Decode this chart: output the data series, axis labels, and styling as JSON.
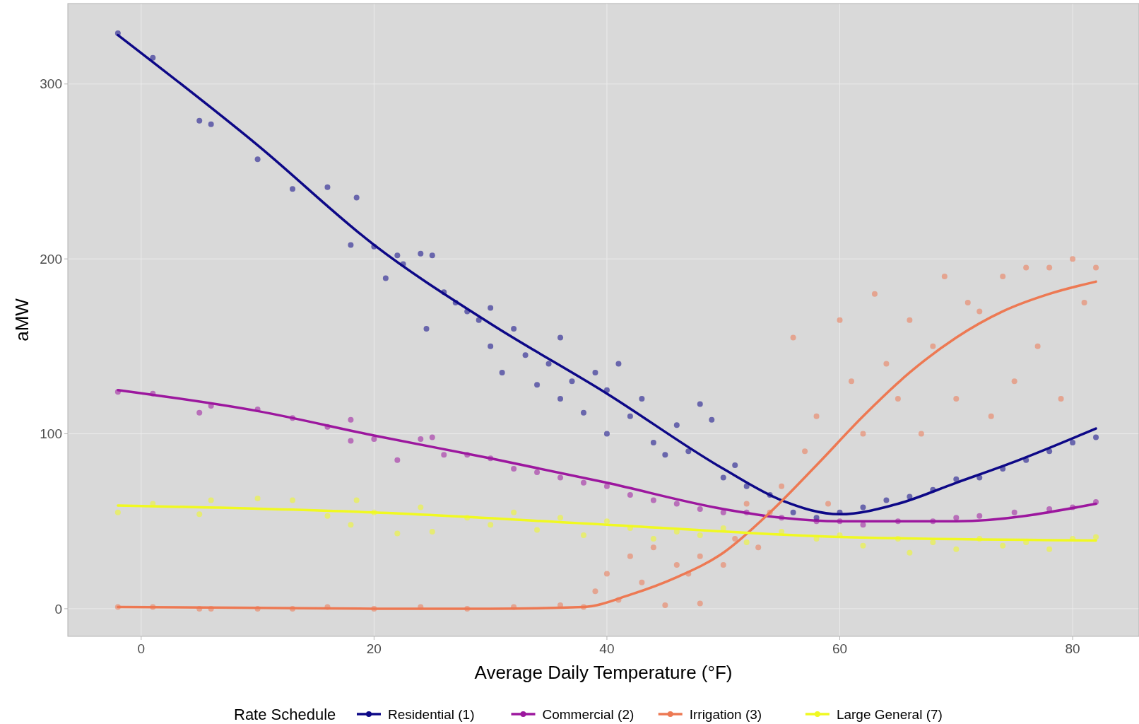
{
  "chart_data": {
    "type": "scatter",
    "xlabel": "Average Daily Temperature (°F)",
    "ylabel": "aMW",
    "legend_title": "Rate Schedule",
    "legend": "bottom",
    "grid": true,
    "marker": "circle",
    "xlim": [
      -6.3,
      85.7
    ],
    "ylim": [
      -15.8,
      346
    ],
    "xticks": [
      0,
      20,
      40,
      60,
      80
    ],
    "yticks": [
      0,
      100,
      200,
      300
    ],
    "series": [
      {
        "name": "Residential (1)",
        "color": "#0d0887",
        "x": [
          -2,
          1,
          5,
          6,
          10,
          13,
          16,
          18,
          18.5,
          20,
          21,
          22,
          22.5,
          24,
          25,
          24.5,
          26,
          27,
          28,
          29,
          30,
          30,
          31,
          32,
          33,
          34,
          35,
          36,
          36,
          37,
          38,
          39,
          40,
          40,
          41,
          42,
          43,
          44,
          45,
          46,
          47,
          48,
          49,
          50,
          51,
          52,
          54,
          56,
          58,
          60,
          62,
          64,
          66,
          68,
          70,
          72,
          74,
          76,
          78,
          80,
          82
        ],
        "values": [
          329,
          315,
          279,
          277,
          257,
          240,
          241,
          208,
          235,
          207,
          189,
          202,
          197,
          203,
          202,
          160,
          181,
          175,
          170,
          165,
          150,
          172,
          135,
          160,
          145,
          128,
          140,
          155,
          120,
          130,
          112,
          135,
          125,
          100,
          140,
          110,
          120,
          95,
          88,
          105,
          90,
          117,
          108,
          75,
          82,
          70,
          65,
          55,
          52,
          55,
          58,
          62,
          64,
          68,
          74,
          75,
          80,
          85,
          90,
          95,
          98
        ]
      },
      {
        "name": "Commercial (2)",
        "color": "#9c179e",
        "x": [
          -2,
          1,
          5,
          6,
          10,
          13,
          16,
          18,
          18,
          20,
          22,
          24,
          25,
          26,
          28,
          30,
          32,
          34,
          36,
          38,
          40,
          42,
          44,
          46,
          48,
          50,
          52,
          55,
          58,
          60,
          62,
          65,
          68,
          70,
          72,
          75,
          78,
          80,
          82
        ],
        "values": [
          124,
          123,
          112,
          116,
          114,
          109,
          104,
          108,
          96,
          97,
          85,
          97,
          98,
          88,
          88,
          86,
          80,
          78,
          75,
          72,
          70,
          65,
          62,
          60,
          57,
          55,
          55,
          52,
          50,
          50,
          48,
          50,
          50,
          52,
          53,
          55,
          57,
          58,
          61
        ]
      },
      {
        "name": "Irrigation (3)",
        "color": "#ed7953",
        "x": [
          -2,
          1,
          5,
          6,
          10,
          13,
          16,
          20,
          24,
          28,
          32,
          36,
          38,
          39,
          40,
          41,
          42,
          43,
          44,
          45,
          46,
          47,
          48,
          48,
          50,
          51,
          52,
          53,
          54,
          55,
          56,
          57,
          58,
          59,
          60,
          61,
          62,
          63,
          64,
          65,
          66,
          67,
          68,
          69,
          70,
          71,
          72,
          73,
          74,
          75,
          76,
          77,
          78,
          79,
          80,
          81,
          82
        ],
        "values": [
          1,
          1,
          0,
          0,
          0,
          0,
          1,
          0,
          1,
          0,
          1,
          2,
          1,
          10,
          20,
          5,
          30,
          15,
          35,
          2,
          25,
          20,
          30,
          3,
          25,
          40,
          60,
          35,
          55,
          70,
          155,
          90,
          110,
          60,
          165,
          130,
          100,
          180,
          140,
          120,
          165,
          100,
          150,
          190,
          120,
          175,
          170,
          110,
          190,
          130,
          195,
          150,
          195,
          120,
          200,
          175,
          195
        ]
      },
      {
        "name": "Large General (7)",
        "color": "#f0f921",
        "x": [
          -2,
          1,
          5,
          6,
          10,
          13,
          16,
          18,
          18.5,
          20,
          22,
          24,
          25,
          28,
          30,
          32,
          34,
          36,
          38,
          40,
          42,
          44,
          46,
          48,
          50,
          52,
          55,
          58,
          60,
          62,
          65,
          66,
          68,
          70,
          72,
          74,
          76,
          78,
          80,
          82
        ],
        "values": [
          55,
          60,
          54,
          62,
          63,
          62,
          53,
          48,
          62,
          55,
          43,
          58,
          44,
          52,
          48,
          55,
          45,
          52,
          42,
          50,
          46,
          40,
          44,
          42,
          46,
          38,
          44,
          40,
          42,
          36,
          40,
          32,
          38,
          34,
          40,
          36,
          38,
          34,
          40,
          41
        ]
      },
      {
        "type": "line",
        "marker": "none",
        "color": "#0d0887",
        "x": [
          -2,
          10,
          20,
          30,
          40,
          50,
          55,
          60,
          65,
          70,
          75,
          82
        ],
        "values": [
          328,
          265,
          208,
          163,
          123,
          80,
          62,
          54,
          60,
          72,
          84,
          103
        ]
      },
      {
        "type": "line",
        "marker": "none",
        "color": "#9c179e",
        "x": [
          -2,
          10,
          20,
          30,
          40,
          50,
          55,
          60,
          70,
          82
        ],
        "values": [
          125,
          113,
          99,
          86,
          72,
          57,
          52,
          50,
          50,
          60
        ]
      },
      {
        "type": "line",
        "marker": "none",
        "color": "#ed7953",
        "x": [
          -2,
          10,
          20,
          30,
          38,
          42,
          46,
          50,
          54,
          58,
          62,
          66,
          70,
          74,
          78,
          82
        ],
        "values": [
          1,
          0.5,
          0,
          0,
          1,
          8,
          18,
          32,
          55,
          82,
          110,
          135,
          155,
          170,
          180,
          187
        ]
      },
      {
        "type": "line",
        "marker": "none",
        "color": "#f0f921",
        "x": [
          -2,
          20,
          40,
          60,
          82
        ],
        "values": [
          59,
          55,
          48,
          41,
          39
        ]
      }
    ]
  }
}
